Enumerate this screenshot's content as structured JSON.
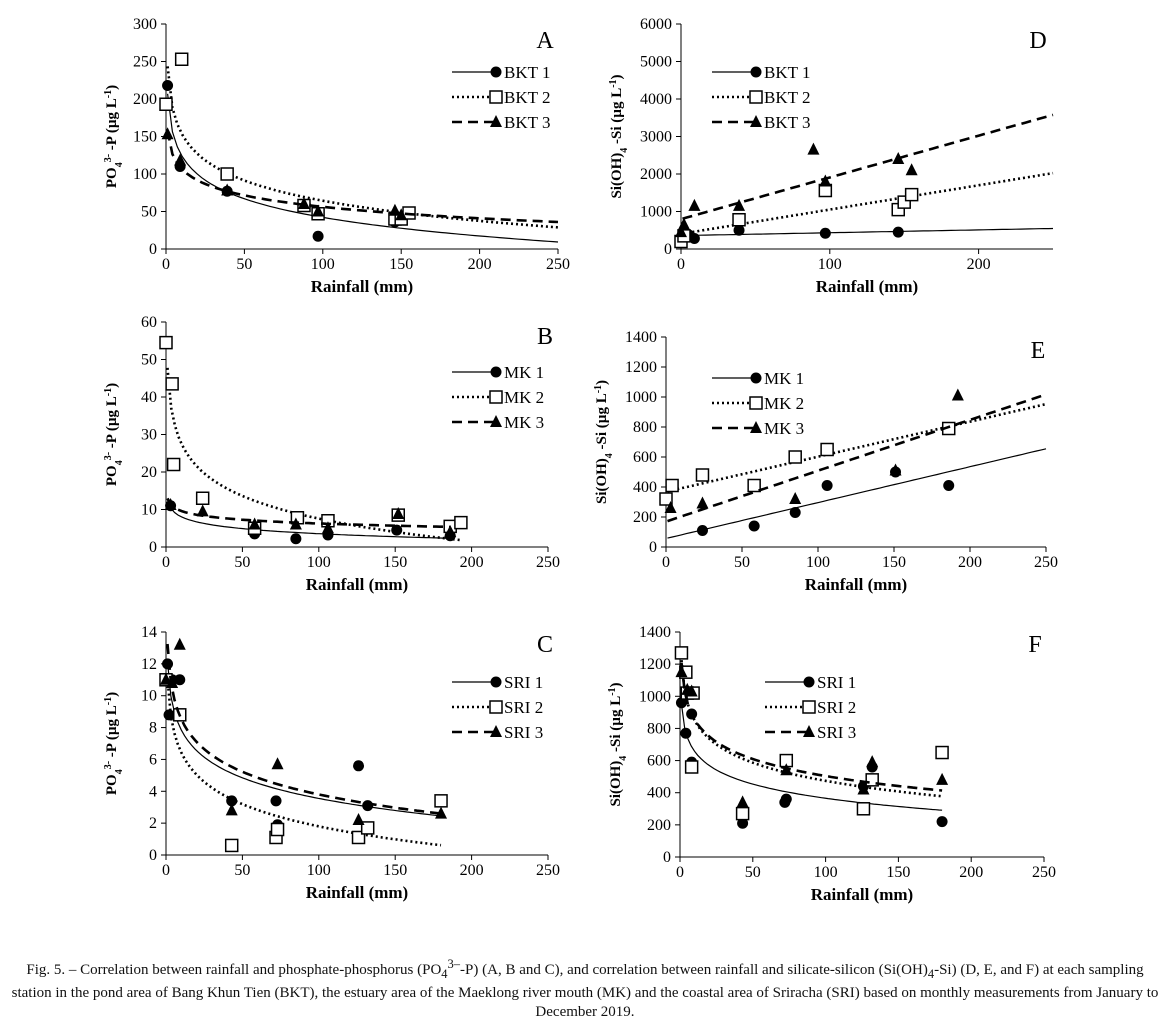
{
  "chart_data": [
    {
      "type": "scatter",
      "panel": "A",
      "xlabel": "Rainfall (mm)",
      "xlim": [
        0,
        250
      ],
      "xticks": [
        0,
        50,
        100,
        150,
        200,
        250
      ],
      "ylim": [
        0,
        300
      ],
      "yticks": [
        0,
        50,
        100,
        150,
        200,
        250,
        300
      ],
      "series": [
        {
          "name": "BKT 1",
          "marker": "circle",
          "line": "solid",
          "fit": "log",
          "points": [
            [
              1,
              218
            ],
            [
              9,
              110
            ],
            [
              39,
              77
            ],
            [
              89,
              58
            ],
            [
              97,
              17
            ],
            [
              146,
              36
            ],
            [
              150,
              41
            ]
          ]
        },
        {
          "name": "BKT 2",
          "marker": "square",
          "line": "dotted",
          "fit": "log",
          "points": [
            [
              0,
              193
            ],
            [
              10,
              253
            ],
            [
              39,
              100
            ],
            [
              88,
              58
            ],
            [
              97,
              47
            ],
            [
              146,
              40
            ],
            [
              150,
              40
            ],
            [
              155,
              48
            ]
          ]
        },
        {
          "name": "BKT 3",
          "marker": "triangle",
          "line": "dashed",
          "fit": "log",
          "points": [
            [
              1,
              153
            ],
            [
              9,
              118
            ],
            [
              39,
              78
            ],
            [
              88,
              60
            ],
            [
              97,
              50
            ],
            [
              146,
              51
            ],
            [
              150,
              45
            ]
          ]
        }
      ]
    },
    {
      "type": "scatter",
      "panel": "B",
      "xlabel": "Rainfall (mm)",
      "xlim": [
        0,
        250
      ],
      "xticks": [
        0,
        50,
        100,
        150,
        200,
        250
      ],
      "ylim": [
        0,
        60
      ],
      "yticks": [
        0,
        10,
        20,
        30,
        40,
        50,
        60
      ],
      "series": [
        {
          "name": "MK 1",
          "marker": "circle",
          "line": "solid",
          "fit": "log",
          "points": [
            [
              3,
              11
            ],
            [
              58,
              3.5
            ],
            [
              85,
              2.2
            ],
            [
              106,
              3.2
            ],
            [
              151,
              4.5
            ],
            [
              186,
              3
            ]
          ]
        },
        {
          "name": "MK 2",
          "marker": "square",
          "line": "dotted",
          "fit": "log",
          "points": [
            [
              0,
              54.5
            ],
            [
              4,
              43.5
            ],
            [
              5,
              22
            ],
            [
              24,
              13
            ],
            [
              58,
              5
            ],
            [
              86,
              7.8
            ],
            [
              106,
              7
            ],
            [
              152,
              8.5
            ],
            [
              186,
              5.5
            ],
            [
              193,
              6.5
            ]
          ]
        },
        {
          "name": "MK 3",
          "marker": "triangle",
          "line": "dashed",
          "fit": "log",
          "points": [
            [
              3,
              11.2
            ],
            [
              24,
              9.5
            ],
            [
              58,
              6
            ],
            [
              85,
              6
            ],
            [
              106,
              5
            ],
            [
              152,
              8.8
            ],
            [
              186,
              4
            ]
          ]
        }
      ]
    },
    {
      "type": "scatter",
      "panel": "C",
      "xlabel": "Rainfall (mm)",
      "xlim": [
        0,
        250
      ],
      "xticks": [
        0,
        50,
        100,
        150,
        200,
        250
      ],
      "ylim": [
        0,
        14
      ],
      "yticks": [
        0,
        2,
        4,
        6,
        8,
        10,
        12,
        14
      ],
      "series": [
        {
          "name": "SRI 1",
          "marker": "circle",
          "line": "solid",
          "fit": "log",
          "points": [
            [
              1,
              12
            ],
            [
              2,
              8.8
            ],
            [
              4,
              11
            ],
            [
              9,
              11
            ],
            [
              43,
              3.4
            ],
            [
              72,
              3.4
            ],
            [
              73,
              1.9
            ],
            [
              126,
              5.6
            ],
            [
              132,
              3.1
            ]
          ]
        },
        {
          "name": "SRI 2",
          "marker": "square",
          "line": "dotted",
          "fit": "log",
          "points": [
            [
              0,
              11
            ],
            [
              9,
              8.8
            ],
            [
              43,
              0.6
            ],
            [
              72,
              1.1
            ],
            [
              73,
              1.6
            ],
            [
              126,
              1.1
            ],
            [
              132,
              1.7
            ],
            [
              180,
              3.4
            ]
          ]
        },
        {
          "name": "SRI 3",
          "marker": "triangle",
          "line": "dashed",
          "fit": "log",
          "points": [
            [
              0,
              11
            ],
            [
              4,
              10.8
            ],
            [
              9,
              13.2
            ],
            [
              43,
              2.8
            ],
            [
              73,
              5.7
            ],
            [
              126,
              2.2
            ],
            [
              180,
              2.6
            ]
          ]
        }
      ]
    },
    {
      "type": "scatter",
      "panel": "D",
      "xlabel": "Rainfall (mm)",
      "xlim": [
        0,
        250
      ],
      "xticks": [
        0,
        100,
        200
      ],
      "ylim": [
        0,
        6000
      ],
      "yticks": [
        0,
        1000,
        2000,
        3000,
        4000,
        5000,
        6000
      ],
      "series": [
        {
          "name": "BKT 1",
          "marker": "circle",
          "line": "solid",
          "fit": "linear",
          "points": [
            [
              0,
              300
            ],
            [
              2,
              400
            ],
            [
              5,
              380
            ],
            [
              9,
              280
            ],
            [
              39,
              500
            ],
            [
              97,
              420
            ],
            [
              146,
              450
            ]
          ]
        },
        {
          "name": "BKT 2",
          "marker": "square",
          "line": "dotted",
          "fit": "linear",
          "points": [
            [
              0,
              200
            ],
            [
              2,
              350
            ],
            [
              39,
              780
            ],
            [
              97,
              1560
            ],
            [
              146,
              1050
            ],
            [
              150,
              1250
            ],
            [
              155,
              1450
            ]
          ]
        },
        {
          "name": "BKT 3",
          "marker": "triangle",
          "line": "dashed",
          "fit": "linear",
          "points": [
            [
              0,
              450
            ],
            [
              2,
              650
            ],
            [
              9,
              1150
            ],
            [
              39,
              1150
            ],
            [
              89,
              2650
            ],
            [
              97,
              1800
            ],
            [
              146,
              2400
            ],
            [
              155,
              2100
            ]
          ]
        }
      ]
    },
    {
      "type": "scatter",
      "panel": "E",
      "xlabel": "Rainfall (mm)",
      "xlim": [
        0,
        250
      ],
      "xticks": [
        0,
        50,
        100,
        150,
        200,
        250
      ],
      "ylim": [
        0,
        1400
      ],
      "yticks": [
        0,
        200,
        400,
        600,
        800,
        1000,
        1200,
        1400
      ],
      "series": [
        {
          "name": "MK 1",
          "marker": "circle",
          "line": "solid",
          "fit": "linear",
          "points": [
            [
              24,
              110
            ],
            [
              58,
              140
            ],
            [
              85,
              230
            ],
            [
              106,
              410
            ],
            [
              151,
              500
            ],
            [
              186,
              410
            ]
          ]
        },
        {
          "name": "MK 2",
          "marker": "square",
          "line": "dotted",
          "fit": "linear",
          "points": [
            [
              0,
              320
            ],
            [
              4,
              410
            ],
            [
              24,
              480
            ],
            [
              58,
              410
            ],
            [
              85,
              600
            ],
            [
              106,
              650
            ],
            [
              186,
              790
            ]
          ]
        },
        {
          "name": "MK 3",
          "marker": "triangle",
          "line": "dashed",
          "fit": "linear",
          "points": [
            [
              3,
              260
            ],
            [
              24,
              290
            ],
            [
              85,
              320
            ],
            [
              151,
              510
            ],
            [
              192,
              1010
            ]
          ]
        }
      ]
    },
    {
      "type": "scatter",
      "panel": "F",
      "xlabel": "Rainfall (mm)",
      "xlim": [
        0,
        250
      ],
      "xticks": [
        0,
        50,
        100,
        150,
        200,
        250
      ],
      "ylim": [
        0,
        1400
      ],
      "yticks": [
        0,
        200,
        400,
        600,
        800,
        1000,
        1200,
        1400
      ],
      "series": [
        {
          "name": "SRI 1",
          "marker": "circle",
          "line": "solid",
          "fit": "log",
          "points": [
            [
              1,
              960
            ],
            [
              4,
              770
            ],
            [
              8,
              590
            ],
            [
              8,
              890
            ],
            [
              43,
              210
            ],
            [
              72,
              340
            ],
            [
              73,
              360
            ],
            [
              126,
              440
            ],
            [
              132,
              560
            ],
            [
              180,
              220
            ]
          ]
        },
        {
          "name": "SRI 2",
          "marker": "square",
          "line": "dotted",
          "fit": "log",
          "points": [
            [
              1,
              1270
            ],
            [
              4,
              1150
            ],
            [
              5,
              1020
            ],
            [
              9,
              1020
            ],
            [
              8,
              560
            ],
            [
              43,
              270
            ],
            [
              73,
              600
            ],
            [
              126,
              300
            ],
            [
              132,
              480
            ],
            [
              180,
              650
            ]
          ]
        },
        {
          "name": "SRI 3",
          "marker": "triangle",
          "line": "dashed",
          "fit": "log",
          "points": [
            [
              1,
              1150
            ],
            [
              5,
              1040
            ],
            [
              8,
              1030
            ],
            [
              43,
              340
            ],
            [
              73,
              540
            ],
            [
              126,
              420
            ],
            [
              132,
              590
            ],
            [
              180,
              480
            ]
          ]
        }
      ]
    }
  ],
  "figure": {
    "caption_html": "Fig. 5. – Correlation between rainfall and phosphate-phosphorus (PO<sub>4</sub><sup>3–</sup>-P) (A, B and C), and correlation between rainfall and silicate-silicon (Si(OH)<sub>4</sub>-Si) (D, E, and F) at each sampling station in the pond area of Bang Khun Tien (BKT), the estuary area of the Maeklong river mouth (MK) and the coastal area of Sriracha (SRI) based on monthly measurements from January to December 2019.",
    "ylabel_po4_html": "PO<tspan baseline-shift='sub' font-size='10'>4</tspan><tspan baseline-shift='super' font-size='10'>3-</tspan> -P (µg L<tspan baseline-shift='super' font-size='10'>-1</tspan>)",
    "ylabel_si_html": "Si(OH)<tspan baseline-shift='sub' font-size='10'>4</tspan> -Si (µg L<tspan baseline-shift='super' font-size='10'>-1</tspan>)"
  }
}
